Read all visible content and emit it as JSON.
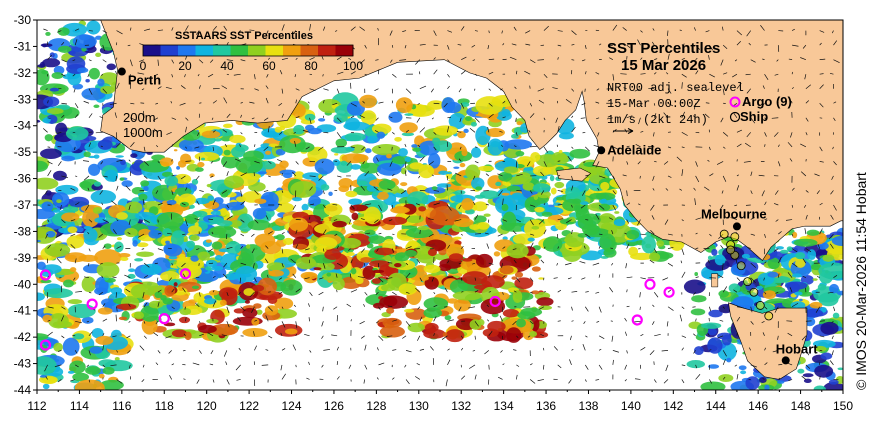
{
  "title": "SST Percentiles",
  "date": "15 Mar 2026",
  "colorbar": {
    "title": "SSTAARS SST Percentiles",
    "ticks": [
      "0",
      "20",
      "40",
      "60",
      "80",
      "100"
    ],
    "colors": [
      "#1a0f8a",
      "#2040d0",
      "#1e78f0",
      "#10b4e0",
      "#20c8a0",
      "#30c040",
      "#90d020",
      "#e8e010",
      "#f0a010",
      "#d86010",
      "#c02010",
      "#9a0008"
    ]
  },
  "current_info": {
    "line1": "NRT00 adj. sealevel",
    "line2": "15-Mar 00:00Z",
    "line3": "1m/s (2kt 24h)"
  },
  "legend": {
    "argo_label": "Argo (9)",
    "ship_label": "Ship",
    "argo_color": "#ff00ff"
  },
  "isobaths": {
    "label_200": "200m",
    "label_1000": "1000m"
  },
  "cities": [
    {
      "name": "Perth",
      "lon": 116.0,
      "lat": -31.95
    },
    {
      "name": "Adelaide",
      "lon": 138.6,
      "lat": -34.93
    },
    {
      "name": "Melbourne",
      "lon": 145.0,
      "lat": -37.81
    },
    {
      "name": "Hobart",
      "lon": 147.3,
      "lat": -42.88
    }
  ],
  "axes": {
    "lon_ticks": [
      "112",
      "114",
      "116",
      "118",
      "120",
      "122",
      "124",
      "126",
      "128",
      "130",
      "132",
      "134",
      "136",
      "138",
      "140",
      "142",
      "144",
      "146",
      "148",
      "150"
    ],
    "lat_ticks": [
      "-30",
      "-31",
      "-32",
      "-33",
      "-34",
      "-35",
      "-36",
      "-37",
      "-38",
      "-39",
      "-40",
      "-41",
      "-42",
      "-43",
      "-44"
    ]
  },
  "argo_floats": [
    {
      "lon": 112.4,
      "lat": -39.65
    },
    {
      "lon": 114.6,
      "lat": -40.75
    },
    {
      "lon": 118.0,
      "lat": -41.3
    },
    {
      "lon": 119.0,
      "lat": -39.6
    },
    {
      "lon": 112.4,
      "lat": -42.3
    },
    {
      "lon": 133.6,
      "lat": -40.65
    },
    {
      "lon": 140.3,
      "lat": -41.35
    },
    {
      "lon": 140.9,
      "lat": -40.0
    },
    {
      "lon": 141.8,
      "lat": -40.3
    }
  ],
  "credit": "© IMOS 20-Mar-2026 11:54 Hobart",
  "land_color": "#f8c898"
}
